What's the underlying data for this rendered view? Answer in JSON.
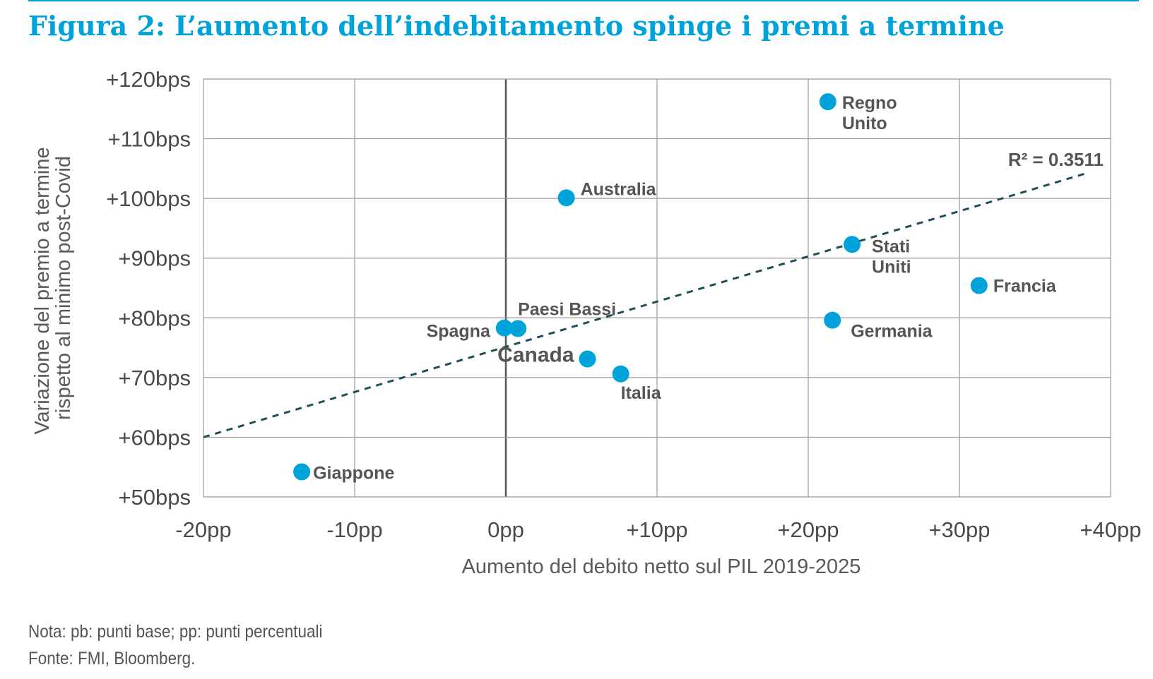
{
  "title": "Figura 2: L’aumento dell’indebitamento spinge i premi a termine",
  "chart_data": {
    "type": "scatter",
    "title": "Figura 2: L’aumento dell’indebitamento spinge i premi a termine",
    "xlabel": "Aumento del debito netto sul PIL 2019-2025",
    "ylabel_lines": [
      "Variazione del premio a termine",
      "rispetto al minimo post-Covid"
    ],
    "xlim": [
      -20,
      40
    ],
    "ylim": [
      50,
      120
    ],
    "x_ticks": [
      -20,
      -10,
      0,
      10,
      20,
      30,
      40
    ],
    "x_tick_labels": [
      "-20pp",
      "-10pp",
      "0pp",
      "+10pp",
      "+20pp",
      "+30pp",
      "+40pp"
    ],
    "y_ticks": [
      50,
      60,
      70,
      80,
      90,
      100,
      110,
      120
    ],
    "y_tick_labels": [
      "+50bps",
      "+60bps",
      "+70bps",
      "+80bps",
      "+90bps",
      "+100bps",
      "+110bps",
      "+120bps"
    ],
    "grid": true,
    "point_color": "#00a3d9",
    "trend_color": "#1f4e5a",
    "points": [
      {
        "label": "Regno Unito",
        "lines": [
          "Regno",
          "Unito"
        ],
        "x": 21.3,
        "y": 116.2
      },
      {
        "label": "Australia",
        "lines": [
          "Australia"
        ],
        "x": 4.0,
        "y": 100.1
      },
      {
        "label": "Stati Uniti",
        "lines": [
          "Stati",
          "Uniti"
        ],
        "x": 22.9,
        "y": 92.3
      },
      {
        "label": "Francia",
        "lines": [
          "Francia"
        ],
        "x": 31.3,
        "y": 85.4
      },
      {
        "label": "Germania",
        "lines": [
          "Germania"
        ],
        "x": 21.6,
        "y": 79.6
      },
      {
        "label": "Paesi Bassi",
        "lines": [
          "Paesi Bassi"
        ],
        "x": 0.8,
        "y": 78.2
      },
      {
        "label": "Spagna",
        "lines": [
          "Spagna"
        ],
        "x": -0.1,
        "y": 78.3
      },
      {
        "label": "Canada",
        "lines": [
          "Canada"
        ],
        "x": 5.4,
        "y": 73.1
      },
      {
        "label": "Italia",
        "lines": [
          "Italia"
        ],
        "x": 7.6,
        "y": 70.6
      },
      {
        "label": "Giappone",
        "lines": [
          "Giappone"
        ],
        "x": -13.5,
        "y": 54.2
      }
    ],
    "trendline": {
      "x": [
        -20,
        38.5
      ],
      "y": [
        60.0,
        104.3
      ],
      "r2_text": "R² = 0.3511"
    }
  },
  "notes": [
    "Nota: pb: punti base; pp: punti percentuali",
    "Fonte: FMI, Bloomberg."
  ]
}
